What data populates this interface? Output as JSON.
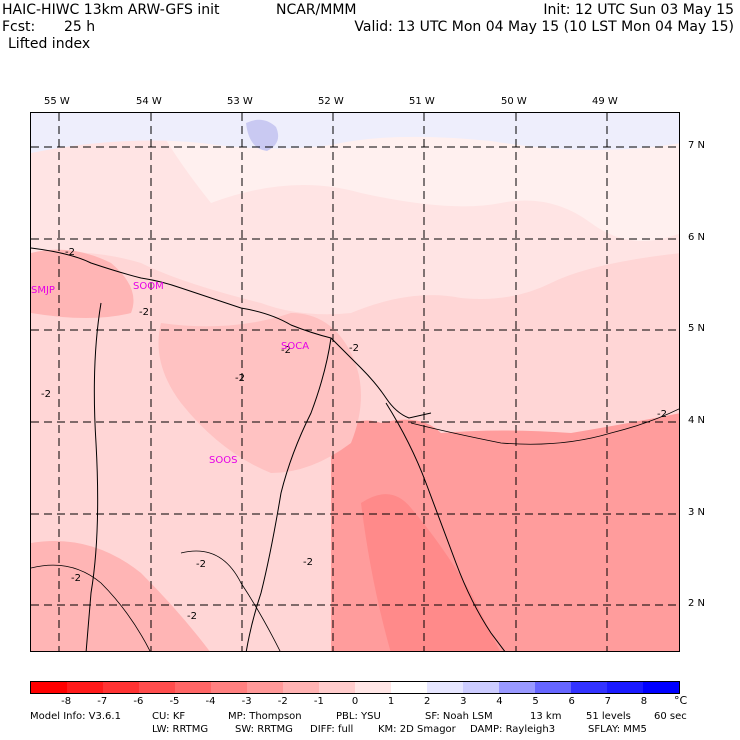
{
  "header": {
    "title": "HAIC-HIWC 13km ARW-GFS init",
    "org": "NCAR/MMM",
    "init": "Init: 12 UTC Sun 03 May 15",
    "fcst_label": "Fcst:",
    "fcst_value": "25 h",
    "valid": "Valid: 13 UTC Mon 04 May 15 (10 LST Mon 04 May 15)",
    "field": "Lifted index"
  },
  "map": {
    "lon_ticks": [
      "55 W",
      "54 W",
      "53 W",
      "52 W",
      "51 W",
      "50 W",
      "49 W"
    ],
    "lat_ticks": [
      "7 N",
      "6 N",
      "5 N",
      "4 N",
      "3 N",
      "2 N"
    ],
    "stations": [
      "SMJP",
      "SOCA",
      "SOOS",
      "SOOM"
    ],
    "contour_labels": [
      "-2",
      "-2",
      "-2",
      "-2",
      "-2",
      "-2",
      "-2",
      "-2",
      "-2",
      "-2",
      "-2"
    ]
  },
  "colorbar": {
    "labels": [
      "-8",
      "-7",
      "-6",
      "-5",
      "-4",
      "-3",
      "-2",
      "-1",
      "0",
      "1",
      "2",
      "3",
      "4",
      "5",
      "6",
      "7",
      "8"
    ],
    "unit": "°C",
    "colors": [
      "#ff0000",
      "#ff1a1a",
      "#ff3333",
      "#ff4d4d",
      "#ff6666",
      "#ff8080",
      "#ff9999",
      "#ffb3b3",
      "#ffcccc",
      "#ffe6e6",
      "#ffffff",
      "#e6e6ff",
      "#ccccff",
      "#9999ff",
      "#6666ff",
      "#3333ff",
      "#1a1aff",
      "#0000ff"
    ]
  },
  "footer": {
    "line1": [
      "Model Info: V3.6.1",
      "CU: KF",
      "MP: Thompson",
      "PBL: YSU",
      "SF: Noah LSM",
      "13 km",
      "51 levels",
      "60 sec"
    ],
    "line2": [
      "LW: RRTMG",
      "SW: RRTMG",
      "DIFF: full",
      "KM: 2D Smagor",
      "DAMP: Rayleigh3",
      "SFLAY: MM5"
    ]
  }
}
